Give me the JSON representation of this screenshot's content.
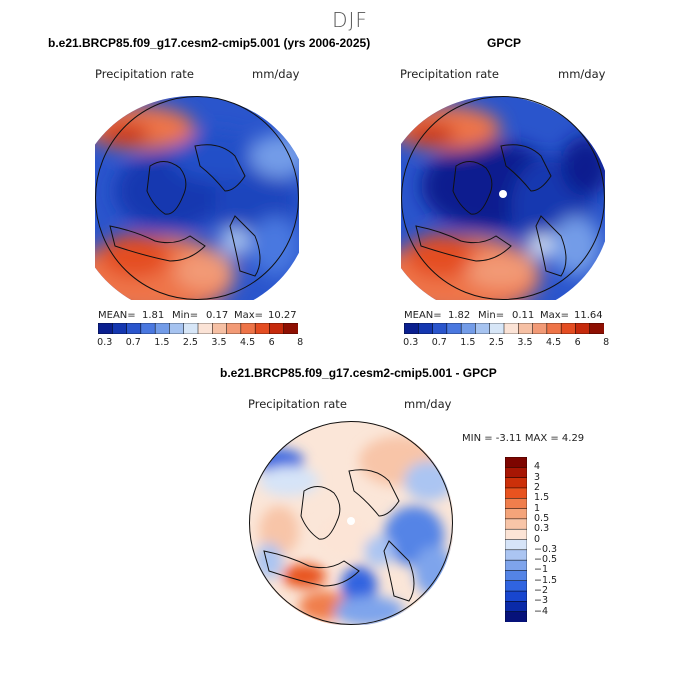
{
  "figure": {
    "season": "DJF",
    "top_left_title": "b.e21.BRCP85.f09_g17.cesm2-cmip5.001 (yrs 2006-2025)",
    "top_right_title": "GPCP",
    "bottom_title": "b.e21.BRCP85.f09_g17.cesm2-cmip5.001 - GPCP"
  },
  "panels": {
    "model": {
      "variable": "Precipitation rate",
      "units": "mm/day",
      "mean_label": "MEAN=",
      "mean": "1.81",
      "min_label": "Min=",
      "min": "0.17",
      "max_label": "Max=",
      "max": "10.27"
    },
    "obs": {
      "variable": "Precipitation rate",
      "units": "mm/day",
      "mean_label": "MEAN=",
      "mean": "1.82",
      "min_label": "Min=",
      "min": "0.11",
      "max_label": "Max=",
      "max": "11.64"
    },
    "diff": {
      "variable": "Precipitation rate",
      "units": "mm/day",
      "stats": "MIN =   -3.11  MAX =   4.29"
    }
  },
  "colorbars": {
    "abs_colors": [
      "#0a1f8f",
      "#1437b0",
      "#2a55cc",
      "#4a78e0",
      "#739ce8",
      "#a6c3f0",
      "#d7e6f7",
      "#fbe3d6",
      "#f6c0a4",
      "#f29a76",
      "#ee7448",
      "#e44d22",
      "#c62a0c",
      "#8e0f02"
    ],
    "abs_ticks": [
      "0.3",
      "0.7",
      "1.5",
      "2.5",
      "3.5",
      "4.5",
      "6",
      "8"
    ],
    "diff_colors": [
      "#06127a",
      "#0a2aa8",
      "#1846cf",
      "#3064e0",
      "#5484e6",
      "#7ea4ec",
      "#abc5f2",
      "#d6e4f8",
      "#fce4d6",
      "#f8c5a8",
      "#f4a47a",
      "#f07e4c",
      "#e8531f",
      "#cc300a",
      "#a71604",
      "#7d0500"
    ],
    "diff_ticks": [
      "4",
      "3",
      "2",
      "1.5",
      "1",
      "0.5",
      "0.3",
      "0",
      "−0.3",
      "−0.5",
      "−1",
      "−1.5",
      "−2",
      "−3",
      "−4"
    ]
  },
  "chart_data": [
    {
      "type": "heatmap",
      "title": "b.e21.BRCP85.f09_g17.cesm2-cmip5.001 (yrs 2006-2025)",
      "variable": "Precipitation rate",
      "units": "mm/day",
      "projection": "polar stereographic (Arctic)",
      "mean": 1.81,
      "min": 0.17,
      "max": 10.27,
      "levels": [
        0.3,
        0.7,
        1.5,
        2.5,
        3.5,
        4.5,
        6,
        8
      ]
    },
    {
      "type": "heatmap",
      "title": "GPCP",
      "variable": "Precipitation rate",
      "units": "mm/day",
      "projection": "polar stereographic (Arctic)",
      "mean": 1.82,
      "min": 0.11,
      "max": 11.64,
      "levels": [
        0.3,
        0.7,
        1.5,
        2.5,
        3.5,
        4.5,
        6,
        8
      ]
    },
    {
      "type": "heatmap",
      "title": "b.e21.BRCP85.f09_g17.cesm2-cmip5.001 - GPCP",
      "variable": "Precipitation rate",
      "units": "mm/day",
      "projection": "polar stereographic (Arctic)",
      "min": -3.11,
      "max": 4.29,
      "levels": [
        -4,
        -3,
        -2,
        -1.5,
        -1,
        -0.5,
        -0.3,
        0,
        0.3,
        0.5,
        1,
        1.5,
        2,
        3,
        4
      ]
    }
  ]
}
